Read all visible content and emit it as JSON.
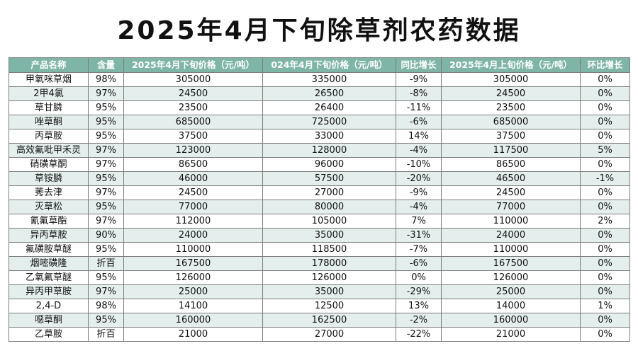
{
  "title": "2025年4月下旬除草剂农药数据",
  "table": {
    "headers": [
      "产品名称",
      "含量",
      "2025年4月下旬价格（元/吨）",
      "024年4月下旬价格（元/吨）",
      "同比增长",
      "2025年4月上旬价格（元/吨）",
      "环比增长"
    ],
    "rows": [
      [
        "甲氧咪草烟",
        "98%",
        "305000",
        "335000",
        "-9%",
        "305000",
        "0%"
      ],
      [
        "2甲4氯",
        "97%",
        "24500",
        "26500",
        "-8%",
        "24500",
        "0%"
      ],
      [
        "草甘膦",
        "95%",
        "23500",
        "26400",
        "-11%",
        "23500",
        "0%"
      ],
      [
        "唑草酮",
        "95%",
        "685000",
        "725000",
        "-6%",
        "685000",
        "0%"
      ],
      [
        "丙草胺",
        "95%",
        "37500",
        "33000",
        "14%",
        "37500",
        "0%"
      ],
      [
        "高效氟吡甲禾灵",
        "97%",
        "123000",
        "128000",
        "-4%",
        "117500",
        "5%"
      ],
      [
        "硝磺草酮",
        "97%",
        "86500",
        "96000",
        "-10%",
        "86500",
        "0%"
      ],
      [
        "草铵膦",
        "95%",
        "46000",
        "57500",
        "-20%",
        "46500",
        "-1%"
      ],
      [
        "莠去津",
        "97%",
        "24500",
        "27000",
        "-9%",
        "24500",
        "0%"
      ],
      [
        "灭草松",
        "95%",
        "77000",
        "80000",
        "-4%",
        "77000",
        "0%"
      ],
      [
        "氰氟草酯",
        "97%",
        "112000",
        "105000",
        "7%",
        "110000",
        "2%"
      ],
      [
        "异丙草胺",
        "90%",
        "24000",
        "35000",
        "-31%",
        "24000",
        "0%"
      ],
      [
        "氟磺胺草醚",
        "95%",
        "110000",
        "118500",
        "-7%",
        "110000",
        "0%"
      ],
      [
        "烟嘧磺隆",
        "折百",
        "167500",
        "178000",
        "-6%",
        "167500",
        "0%"
      ],
      [
        "乙氧氟草醚",
        "95%",
        "126000",
        "126000",
        "0%",
        "126000",
        "0%"
      ],
      [
        "异丙甲草胺",
        "97%",
        "25000",
        "35000",
        "-29%",
        "25000",
        "0%"
      ],
      [
        "2,4-D",
        "98%",
        "14100",
        "12500",
        "13%",
        "14000",
        "1%"
      ],
      [
        "噁草酮",
        "95%",
        "160000",
        "162500",
        "-2%",
        "160000",
        "0%"
      ],
      [
        "乙草胺",
        "折百",
        "21000",
        "27000",
        "-22%",
        "21000",
        "0%"
      ]
    ]
  }
}
